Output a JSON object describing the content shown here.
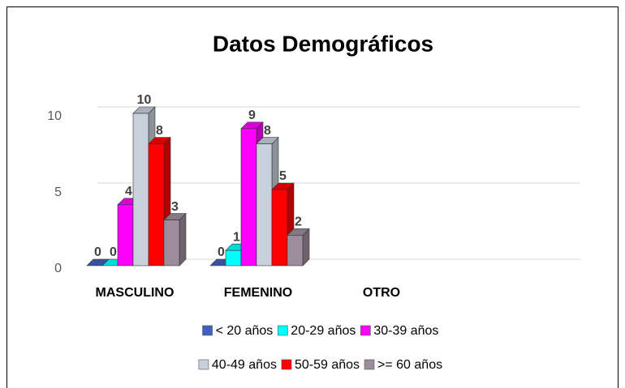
{
  "chart_data": {
    "type": "bar3d",
    "title": "Datos Demográficos",
    "categories": [
      "MASCULINO",
      "FEMENINO",
      "OTRO"
    ],
    "series": [
      {
        "name": "< 20 años",
        "color": "#4060c0",
        "values": [
          0,
          0,
          null
        ]
      },
      {
        "name": "20-29 años",
        "color": "#00ffff",
        "values": [
          0,
          1,
          null
        ]
      },
      {
        "name": "30-39 años",
        "color": "#ff00ff",
        "values": [
          4,
          9,
          null
        ]
      },
      {
        "name": "40-49 años",
        "color": "#c8d0dc",
        "values": [
          10,
          8,
          null
        ]
      },
      {
        "name": "50-59 años",
        "color": "#ff0000",
        "values": [
          8,
          5,
          null
        ]
      },
      {
        "name": ">= 60 años",
        "color": "#9c8c9c",
        "values": [
          3,
          2,
          null
        ]
      }
    ],
    "ylim": [
      0,
      10
    ],
    "yticks": [
      0,
      5,
      10
    ],
    "grid": true,
    "legend": "bottom"
  }
}
